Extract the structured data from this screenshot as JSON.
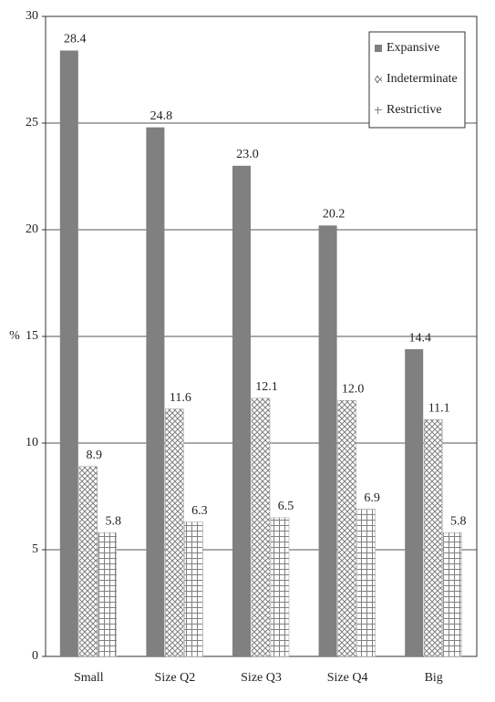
{
  "chart_data": {
    "type": "bar",
    "y_label": "%",
    "categories": [
      "Small",
      "Size Q2",
      "Size Q3",
      "Size Q4",
      "Big"
    ],
    "series": [
      {
        "name": "Expansive",
        "color": "#808080",
        "pattern": "solid",
        "values": [
          28.4,
          24.8,
          23.0,
          20.2,
          14.4
        ],
        "value_labels": [
          "28.4",
          "24.8",
          "23.0",
          "20.2",
          "14.4"
        ]
      },
      {
        "name": "Indeterminate",
        "color": "#808080",
        "pattern": "crosshatch",
        "values": [
          8.9,
          11.6,
          12.1,
          12.0,
          11.1
        ],
        "value_labels": [
          "8.9",
          "11.6",
          "12.1",
          "12.0",
          "11.1"
        ]
      },
      {
        "name": "Restrictive",
        "color": "#808080",
        "pattern": "grid",
        "values": [
          5.8,
          6.3,
          6.5,
          6.9,
          5.8
        ],
        "value_labels": [
          "5.8",
          "6.3",
          "6.5",
          "6.9",
          "5.8"
        ]
      }
    ],
    "ylim": [
      0,
      30
    ],
    "yticks": [
      0,
      5,
      10,
      15,
      20,
      25,
      30
    ],
    "grid": true,
    "legend": "top-right"
  }
}
